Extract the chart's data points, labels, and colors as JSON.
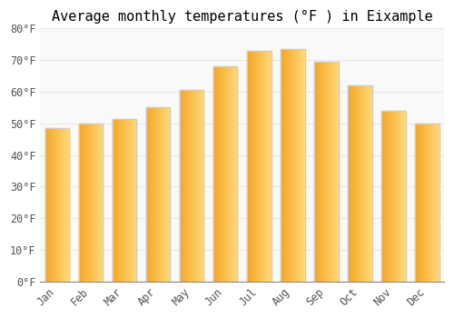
{
  "title": "Average monthly temperatures (°F ) in Eixample",
  "months": [
    "Jan",
    "Feb",
    "Mar",
    "Apr",
    "May",
    "Jun",
    "Jul",
    "Aug",
    "Sep",
    "Oct",
    "Nov",
    "Dec"
  ],
  "values": [
    48.5,
    50.0,
    51.5,
    55.0,
    60.5,
    68.0,
    73.0,
    73.5,
    69.5,
    62.0,
    54.0,
    50.0
  ],
  "bar_color_left": "#F5A623",
  "bar_color_right": "#FDD878",
  "bar_edge_color": "#cccccc",
  "ylim": [
    0,
    80
  ],
  "yticks": [
    0,
    10,
    20,
    30,
    40,
    50,
    60,
    70,
    80
  ],
  "background_color": "#ffffff",
  "plot_bg_color": "#f9f9f9",
  "grid_color": "#e8e8e8",
  "title_fontsize": 11,
  "tick_fontsize": 8.5,
  "font_family": "monospace",
  "bar_width": 0.72
}
